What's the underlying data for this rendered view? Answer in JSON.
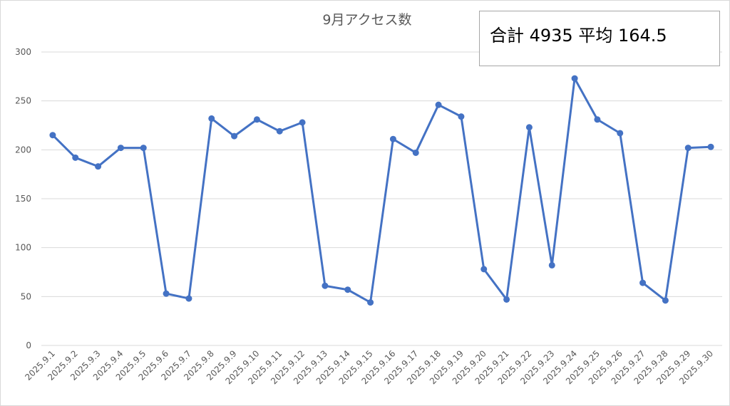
{
  "chart_data": {
    "type": "line",
    "title": "9月アクセス数",
    "annotation": "合計 4935 平均 164.5",
    "categories": [
      "2025.9.1",
      "2025.9.2",
      "2025.9.3",
      "2025.9.4",
      "2025.9.5",
      "2025.9.6",
      "2025.9.7",
      "2025.9.8",
      "2025.9.9",
      "2025.9.10",
      "2025.9.11",
      "2025.9.12",
      "2025.9.13",
      "2025.9.14",
      "2025.9.15",
      "2025.9.16",
      "2025.9.17",
      "2025.9.18",
      "2025.9.19",
      "2025.9.20",
      "2025.9.21",
      "2025.9.22",
      "2025.9.23",
      "2025.9.24",
      "2025.9.25",
      "2025.9.26",
      "2025.9.27",
      "2025.9.28",
      "2025.9.29",
      "2025.9.30"
    ],
    "values": [
      215,
      192,
      183,
      202,
      202,
      53,
      48,
      232,
      214,
      231,
      219,
      228,
      61,
      57,
      44,
      211,
      197,
      246,
      234,
      78,
      47,
      223,
      82,
      273,
      231,
      217,
      64,
      46,
      202,
      203
    ],
    "color": "#4472c4",
    "ylim": [
      0,
      300
    ],
    "yticks": [
      0,
      50,
      100,
      150,
      200,
      250,
      300
    ],
    "grid": true
  }
}
